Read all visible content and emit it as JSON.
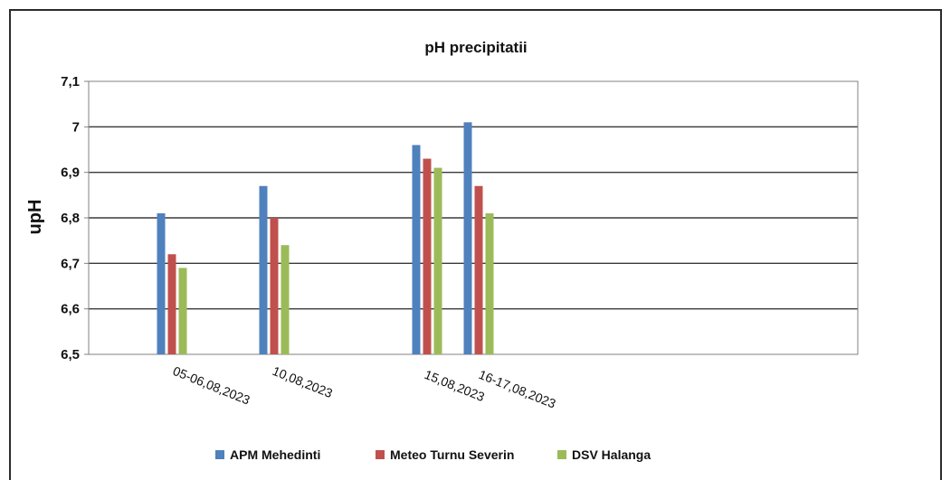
{
  "chart_data": {
    "type": "bar",
    "title": "pH precipitatii",
    "xlabel": "",
    "ylabel": "upH",
    "ylim": [
      6.5,
      7.1
    ],
    "yticks": [
      "6,5",
      "6,6",
      "6,7",
      "6,8",
      "6,9",
      "7",
      "7,1"
    ],
    "categories": [
      "05-06,08,2023",
      "10,08,2023",
      "15,08,2023",
      "16-17,08,2023"
    ],
    "series": [
      {
        "name": "APM Mehedinti",
        "color": "#4f81bd",
        "values": [
          6.81,
          6.87,
          6.96,
          7.01
        ]
      },
      {
        "name": "Meteo Turnu Severin",
        "color": "#c0504d",
        "values": [
          6.72,
          6.8,
          6.93,
          6.87
        ]
      },
      {
        "name": "DSV Halanga",
        "color": "#9bbb59",
        "values": [
          6.69,
          6.74,
          6.91,
          6.81
        ]
      }
    ],
    "grid": true,
    "legend": "bottom"
  }
}
